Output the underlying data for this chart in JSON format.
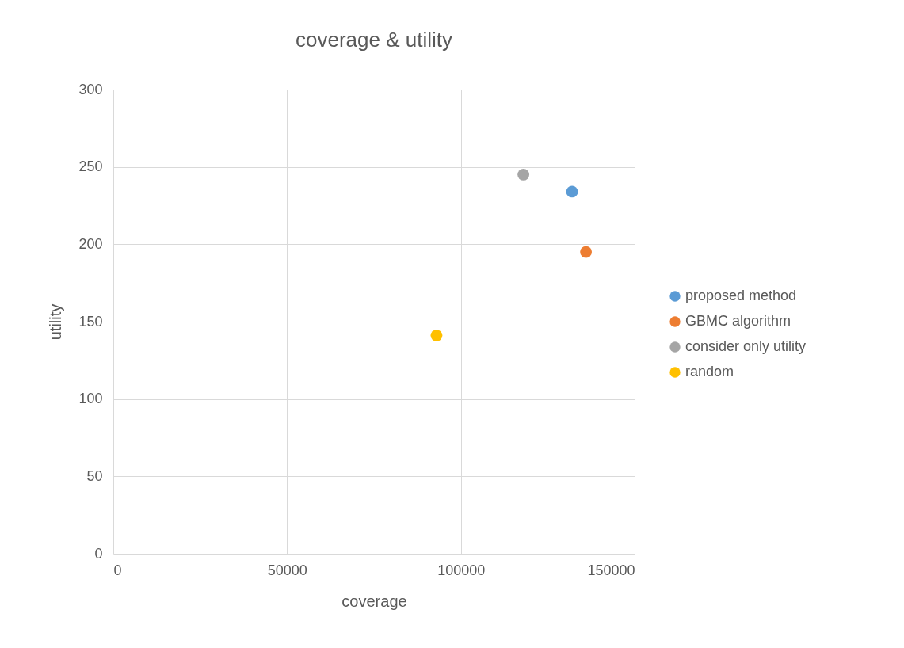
{
  "chart_data": {
    "type": "scatter",
    "title": "coverage & utility",
    "xlabel": "coverage",
    "ylabel": "utility",
    "series": [
      {
        "name": "proposed method",
        "color": "#5b9bd5",
        "x": [
          132000
        ],
        "values": [
          234
        ]
      },
      {
        "name": "GBMC algorithm",
        "color": "#ed7d31",
        "x": [
          136000
        ],
        "values": [
          195
        ]
      },
      {
        "name": "consider only utility",
        "color": "#a5a5a5",
        "x": [
          118000
        ],
        "values": [
          245
        ]
      },
      {
        "name": "random",
        "color": "#ffc000",
        "x": [
          93000
        ],
        "values": [
          141
        ]
      }
    ],
    "xlim": [
      0,
      150000
    ],
    "xticks": [
      0,
      50000,
      100000,
      150000
    ],
    "ylim": [
      0,
      300
    ],
    "yticks": [
      0,
      50,
      100,
      150,
      200,
      250,
      300
    ],
    "grid": true,
    "legend": "right",
    "marker": "circle"
  }
}
